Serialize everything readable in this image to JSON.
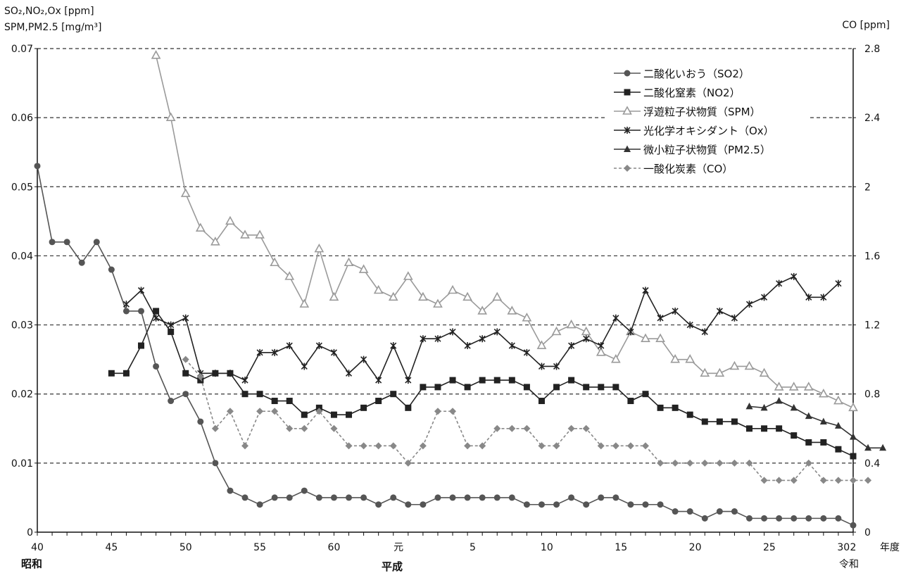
{
  "chart_data": {
    "type": "line",
    "left_axis_title": [
      "SO₂,NO₂,Ox [ppm]",
      "SPM,PM2.5 [mg/m³]"
    ],
    "right_axis_title": "CO [ppm]",
    "x_unit_label": "年度",
    "era_labels": {
      "showa": "昭和",
      "heisei": "平成",
      "reiwa": "令和"
    },
    "x_tick_labels": [
      "40",
      "45",
      "50",
      "55",
      "60",
      "元",
      "5",
      "10",
      "15",
      "20",
      "25",
      "30",
      "2"
    ],
    "y_left": {
      "min": 0,
      "max": 0.07,
      "ticks": [
        "0",
        "0.01",
        "0.02",
        "0.03",
        "0.04",
        "0.05",
        "0.06",
        "0.07"
      ]
    },
    "y_right": {
      "min": 0,
      "max": 2.8,
      "ticks": [
        "0",
        "0.4",
        "0.8",
        "1.2",
        "1.6",
        "2",
        "2.4",
        "2.8"
      ]
    },
    "grid": "horizontal-dashed",
    "legend_placement": "top-right",
    "series": [
      {
        "name": "二酸化いおう（SO2）",
        "marker": "circle",
        "color": "#555555",
        "axis": "left",
        "start": 0,
        "values": [
          0.053,
          0.042,
          0.042,
          0.039,
          0.042,
          0.038,
          0.032,
          0.032,
          0.024,
          0.019,
          0.02,
          0.016,
          0.01,
          0.006,
          0.005,
          0.004,
          0.005,
          0.005,
          0.006,
          0.005,
          0.005,
          0.005,
          0.005,
          0.004,
          0.005,
          0.004,
          0.004,
          0.005,
          0.005,
          0.005,
          0.005,
          0.005,
          0.005,
          0.004,
          0.004,
          0.004,
          0.005,
          0.004,
          0.005,
          0.005,
          0.004,
          0.004,
          0.004,
          0.003,
          0.003,
          0.002,
          0.003,
          0.003,
          0.002,
          0.002,
          0.002,
          0.002,
          0.002,
          0.002,
          0.002,
          0.001
        ]
      },
      {
        "name": "二酸化窒素（NO2）",
        "marker": "square",
        "color": "#222222",
        "axis": "left",
        "start": 5,
        "values": [
          0.023,
          0.023,
          0.027,
          0.032,
          0.029,
          0.023,
          0.022,
          0.023,
          0.023,
          0.02,
          0.02,
          0.019,
          0.019,
          0.017,
          0.018,
          0.017,
          0.017,
          0.018,
          0.019,
          0.02,
          0.018,
          0.021,
          0.021,
          0.022,
          0.021,
          0.022,
          0.022,
          0.022,
          0.021,
          0.019,
          0.021,
          0.022,
          0.021,
          0.021,
          0.021,
          0.019,
          0.02,
          0.018,
          0.018,
          0.017,
          0.016,
          0.016,
          0.016,
          0.015,
          0.015,
          0.015,
          0.014,
          0.013,
          0.013,
          0.012,
          0.011
        ]
      },
      {
        "name": "浮遊粒子状物質（SPM）",
        "marker": "triangle-open",
        "color": "#9a9a9a",
        "axis": "left",
        "start": 8,
        "values": [
          0.069,
          0.06,
          0.049,
          0.044,
          0.042,
          0.045,
          0.043,
          0.043,
          0.039,
          0.037,
          0.033,
          0.041,
          0.034,
          0.039,
          0.038,
          0.035,
          0.034,
          0.037,
          0.034,
          0.033,
          0.035,
          0.034,
          0.032,
          0.034,
          0.032,
          0.031,
          0.027,
          0.029,
          0.03,
          0.029,
          0.026,
          0.025,
          0.029,
          0.028,
          0.028,
          0.025,
          0.025,
          0.023,
          0.023,
          0.024,
          0.024,
          0.023,
          0.021,
          0.021,
          0.021,
          0.02,
          0.019,
          0.018
        ]
      },
      {
        "name": "光化学オキシダント（Ox）",
        "marker": "x",
        "color": "#222222",
        "axis": "left",
        "start": 6,
        "values": [
          0.033,
          0.035,
          0.031,
          0.03,
          0.031,
          0.023,
          0.023,
          0.023,
          0.022,
          0.026,
          0.026,
          0.027,
          0.024,
          0.027,
          0.026,
          0.023,
          0.025,
          0.022,
          0.027,
          0.022,
          0.028,
          0.028,
          0.029,
          0.027,
          0.028,
          0.029,
          0.027,
          0.026,
          0.024,
          0.024,
          0.027,
          0.028,
          0.027,
          0.031,
          0.029,
          0.035,
          0.031,
          0.032,
          0.03,
          0.029,
          0.032,
          0.031,
          0.033,
          0.034,
          0.036,
          0.037,
          0.034,
          0.034,
          0.036
        ]
      },
      {
        "name": "微小粒子状物質（PM2.5）",
        "marker": "triangle",
        "color": "#333333",
        "axis": "left",
        "start": 48,
        "values": [
          0.0182,
          0.018,
          0.019,
          0.018,
          0.0168,
          0.016,
          0.0154,
          0.0138,
          0.0122,
          0.0122
        ]
      },
      {
        "name": "一酸化炭素（CO）",
        "marker": "diamond",
        "color": "#888888",
        "dashed": true,
        "axis": "right",
        "start": 10,
        "values": [
          1.0,
          0.9,
          0.6,
          0.7,
          0.5,
          0.7,
          0.7,
          0.6,
          0.6,
          0.7,
          0.6,
          0.5,
          0.5,
          0.5,
          0.5,
          0.4,
          0.5,
          0.7,
          0.7,
          0.5,
          0.5,
          0.6,
          0.6,
          0.6,
          0.5,
          0.5,
          0.6,
          0.6,
          0.5,
          0.5,
          0.5,
          0.5,
          0.4,
          0.4,
          0.4,
          0.4,
          0.4,
          0.4,
          0.4,
          0.3,
          0.3,
          0.3,
          0.4,
          0.3,
          0.3,
          0.3,
          0.3
        ]
      }
    ]
  }
}
